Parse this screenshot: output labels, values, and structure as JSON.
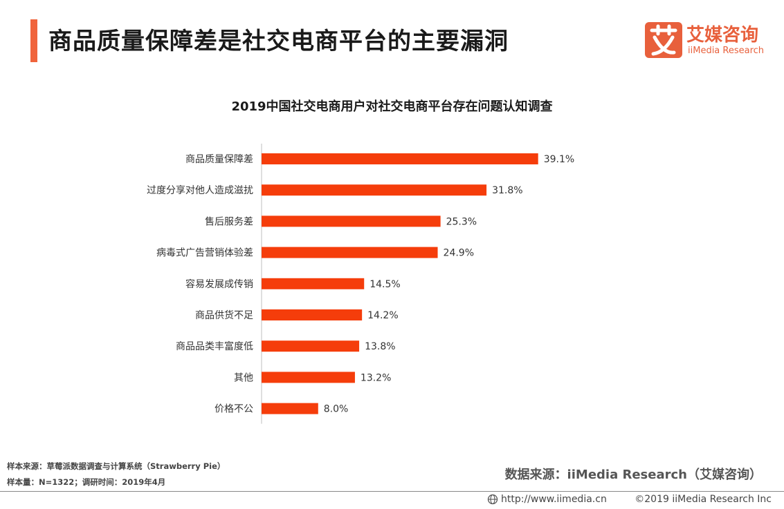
{
  "header": {
    "title": "商品质量保障差是社交电商平台的主要漏洞",
    "accent_color": "#f0643c"
  },
  "logo": {
    "mark_glyph": "艾",
    "name_cn": "艾媒咨询",
    "name_en": "iiMedia Research",
    "brand_color": "#e8603c"
  },
  "chart_data": {
    "type": "bar",
    "orientation": "horizontal",
    "title": "2019中国社交电商用户对社交电商平台存在问题认知调查",
    "categories": [
      "商品质量保障差",
      "过度分享对他人造成滋扰",
      "售后服务差",
      "病毒式广告营销体验差",
      "容易发展成传销",
      "商品供货不足",
      "商品品类丰富度低",
      "其他",
      "价格不公"
    ],
    "values": [
      39.1,
      31.8,
      25.3,
      24.9,
      14.5,
      14.2,
      13.8,
      13.2,
      8.0
    ],
    "value_labels": [
      "39.1%",
      "31.8%",
      "25.3%",
      "24.9%",
      "14.5%",
      "14.2%",
      "13.8%",
      "13.2%",
      "8.0%"
    ],
    "unit": "%",
    "bar_color": "#f53d0b",
    "xlim": [
      0,
      45
    ],
    "grid": false,
    "legend": "none"
  },
  "footer": {
    "sample_source": "样本来源：草莓派数据调查与计算系统（Strawberry Pie）",
    "sample_size": "样本量：N=1322；调研时间：2019年4月",
    "data_source": "数据来源：iiMedia Research（艾媒咨询）",
    "url": "http://www.iimedia.cn",
    "copyright": "©2019  iiMedia Research  Inc"
  }
}
